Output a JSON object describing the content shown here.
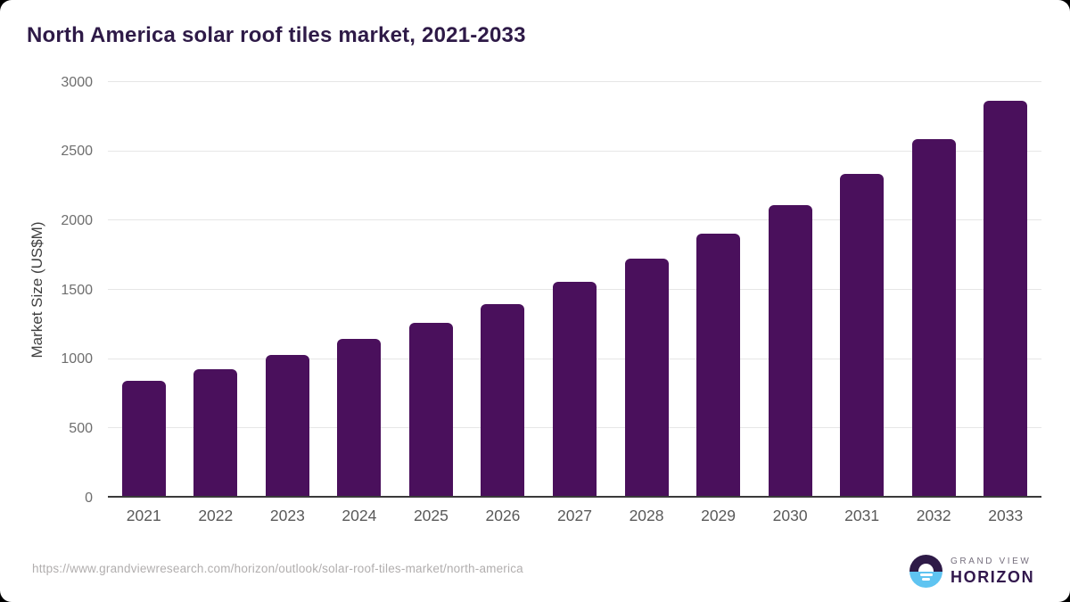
{
  "header": {
    "title": "North America solar roof tiles market, 2021-2033"
  },
  "chart_data": {
    "type": "bar",
    "title": "North America solar roof tiles market, 2021-2033",
    "categories": [
      "2021",
      "2022",
      "2023",
      "2024",
      "2025",
      "2026",
      "2027",
      "2028",
      "2029",
      "2030",
      "2031",
      "2032",
      "2033"
    ],
    "values": [
      845,
      930,
      1030,
      1145,
      1265,
      1400,
      1555,
      1725,
      1905,
      2110,
      2335,
      2585,
      2865
    ],
    "xlabel": "",
    "ylabel": "Market Size (US$M)",
    "ylim": [
      0,
      3000
    ],
    "yticks": [
      0,
      500,
      1000,
      1500,
      2000,
      2500,
      3000
    ],
    "grid": true,
    "legend_position": "none",
    "bar_color": "#4a105c"
  },
  "footer": {
    "source_url": "https://www.grandviewresearch.com/horizon/outlook/solar-roof-tiles-market/north-america",
    "logo": {
      "brand_top": "GRAND VIEW",
      "brand_bottom": "HORIZON",
      "icon": "horizon-sun-icon",
      "icon_top_color": "#2e1a47",
      "icon_bottom_color": "#5fc4f1"
    }
  },
  "colors": {
    "title_text": "#2e1a47",
    "y_tick_text": "#6e6e6e",
    "x_tick_text": "#595959",
    "grid_line": "#e6e6e6",
    "axis_line": "#3a3a3a",
    "url_text": "#b1aeae"
  }
}
